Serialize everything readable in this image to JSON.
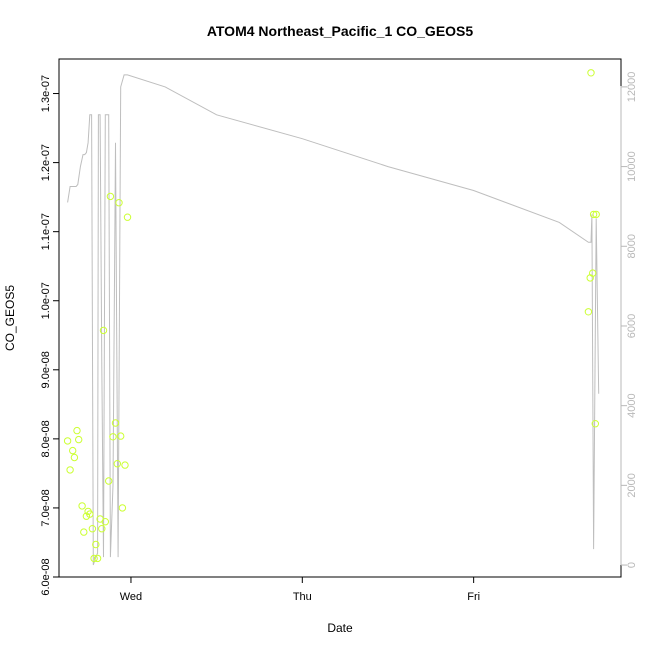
{
  "chart_data": {
    "type": "scatter",
    "title": "ATOM4 Northeast_Pacific_1 CO_GEOS5",
    "xlabel": "Date",
    "ylabel": "CO_GEOS5",
    "y_ticks": [
      "6.0e-08",
      "7.0e-08",
      "8.0e-08",
      "9.0e-08",
      "1.0e-07",
      "1.1e-07",
      "1.2e-07",
      "1.3e-07"
    ],
    "y_tick_values": [
      6e-08,
      7e-08,
      8e-08,
      9e-08,
      1e-07,
      1.1e-07,
      1.2e-07,
      1.3e-07
    ],
    "ylim": [
      6e-08,
      1.35e-07
    ],
    "x_ticks": [
      "Wed",
      "Thu",
      "Fri"
    ],
    "x_tick_values": [
      0.0,
      1.0,
      2.0
    ],
    "x_units": "days relative to Wed 00:00",
    "xlim": [
      -0.42,
      2.86
    ],
    "y2_ticks": [
      "0",
      "2000",
      "4000",
      "6000",
      "8000",
      "10000",
      "12000"
    ],
    "y2_tick_values": [
      0,
      2000,
      4000,
      6000,
      8000,
      10000,
      12000
    ],
    "y2lim": [
      -300,
      12700
    ],
    "point_color": "#ccff33",
    "line_color": "#bebebe",
    "series": [
      {
        "kind": "points",
        "x": [
          -0.37,
          -0.355,
          -0.34,
          -0.33,
          -0.315,
          -0.305,
          -0.285,
          -0.275,
          -0.26,
          -0.25,
          -0.24,
          -0.225,
          -0.215,
          -0.205,
          -0.195,
          -0.18,
          -0.17,
          -0.16,
          -0.15,
          -0.13,
          -0.12,
          -0.105,
          -0.09,
          -0.08,
          -0.07,
          -0.06,
          -0.05,
          -0.035,
          -0.02,
          2.67,
          2.68,
          2.685,
          2.695,
          2.7,
          2.71,
          2.715
        ],
        "y": [
          7.97e-08,
          7.55e-08,
          7.83e-08,
          7.73e-08,
          8.12e-08,
          7.99e-08,
          7.03e-08,
          6.65e-08,
          6.88e-08,
          6.95e-08,
          6.91e-08,
          6.7e-08,
          6.27e-08,
          6.47e-08,
          6.27e-08,
          6.84e-08,
          6.7e-08,
          9.57e-08,
          6.8e-08,
          7.39e-08,
          1.151e-07,
          8.03e-08,
          8.23e-08,
          7.64e-08,
          1.142e-07,
          8.04e-08,
          7e-08,
          7.62e-08,
          1.121e-07,
          9.84e-08,
          1.033e-07,
          1.33e-07,
          1.04e-07,
          1.125e-07,
          8.22e-08,
          1.125e-07
        ]
      },
      {
        "kind": "line",
        "axis": "right",
        "x": [
          -0.37,
          -0.355,
          -0.33,
          -0.32,
          -0.31,
          -0.295,
          -0.28,
          -0.27,
          -0.26,
          -0.25,
          -0.24,
          -0.23,
          -0.22,
          -0.205,
          -0.195,
          -0.19,
          -0.18,
          -0.17,
          -0.16,
          -0.15,
          -0.13,
          -0.12,
          -0.105,
          -0.09,
          -0.075,
          -0.065,
          -0.06,
          -0.04,
          -0.02,
          0.2,
          0.5,
          1.0,
          1.5,
          2.0,
          2.5,
          2.67,
          2.685,
          2.69,
          2.7,
          2.715,
          2.73
        ],
        "y": [
          9100,
          9500,
          9500,
          9500,
          9550,
          10000,
          10300,
          10300,
          10350,
          10600,
          11300,
          11300,
          0,
          200,
          300,
          11300,
          11300,
          5000,
          200,
          11300,
          11300,
          200,
          2000,
          10600,
          200,
          8000,
          12000,
          12300,
          12300,
          12000,
          11300,
          10700,
          10000,
          9400,
          8600,
          8100,
          8100,
          8800,
          400,
          8700,
          4300
        ]
      }
    ],
    "grid": false,
    "legend": "none"
  }
}
